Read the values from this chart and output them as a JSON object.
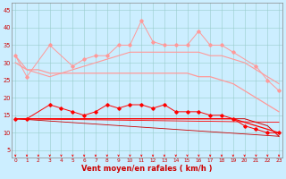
{
  "x": [
    0,
    1,
    2,
    3,
    4,
    5,
    6,
    7,
    8,
    9,
    10,
    11,
    12,
    13,
    14,
    15,
    16,
    17,
    18,
    19,
    20,
    21,
    22,
    23
  ],
  "gust_jagged": [
    32,
    26,
    null,
    35,
    null,
    29,
    31,
    32,
    32,
    35,
    35,
    42,
    36,
    35,
    35,
    35,
    39,
    35,
    35,
    33,
    null,
    29,
    25,
    22
  ],
  "gust_smooth": [
    32,
    28,
    27,
    26,
    27,
    28,
    29,
    30,
    31,
    32,
    33,
    33,
    33,
    33,
    33,
    33,
    33,
    32,
    32,
    31,
    30,
    28,
    26,
    24
  ],
  "wind_mean_smooth": [
    30,
    28,
    28,
    27,
    27,
    27,
    27,
    27,
    27,
    27,
    27,
    27,
    27,
    27,
    27,
    27,
    26,
    26,
    25,
    24,
    22,
    20,
    18,
    16
  ],
  "wind_jagged": [
    14,
    14,
    null,
    18,
    17,
    16,
    15,
    16,
    18,
    17,
    18,
    18,
    17,
    18,
    16,
    16,
    16,
    15,
    15,
    14,
    12,
    11,
    10,
    10
  ],
  "wind_mean2": [
    14,
    14,
    14,
    14,
    14,
    14,
    14,
    14,
    14,
    14,
    14,
    14,
    14,
    14,
    14,
    14,
    14,
    14,
    14,
    14,
    13,
    12,
    11,
    10
  ],
  "wind_flat": [
    14,
    14,
    14,
    14,
    14,
    14,
    14,
    14,
    14,
    14,
    14,
    14,
    14,
    14,
    14,
    14,
    14,
    14,
    14,
    14,
    14,
    13,
    12,
    9
  ],
  "wind_trend": [
    14,
    14,
    14,
    14,
    14,
    14,
    14,
    14,
    14,
    14,
    14,
    14,
    14,
    14,
    14,
    14,
    14,
    14,
    14,
    14,
    14,
    13,
    12,
    9
  ],
  "bg_color": "#cceeff",
  "grid_color": "#99cccc",
  "color_light": "#ff9999",
  "color_red": "#ff0000",
  "color_darkred": "#cc0000",
  "xlabel": "Vent moyen/en rafales ( km/h )",
  "yticks": [
    5,
    10,
    15,
    20,
    25,
    30,
    35,
    40,
    45
  ],
  "xticks": [
    0,
    1,
    2,
    3,
    4,
    5,
    6,
    7,
    8,
    9,
    10,
    11,
    12,
    13,
    14,
    15,
    16,
    17,
    18,
    19,
    20,
    21,
    22,
    23
  ],
  "ylim": [
    3,
    47
  ],
  "xlim": [
    -0.3,
    23.3
  ]
}
